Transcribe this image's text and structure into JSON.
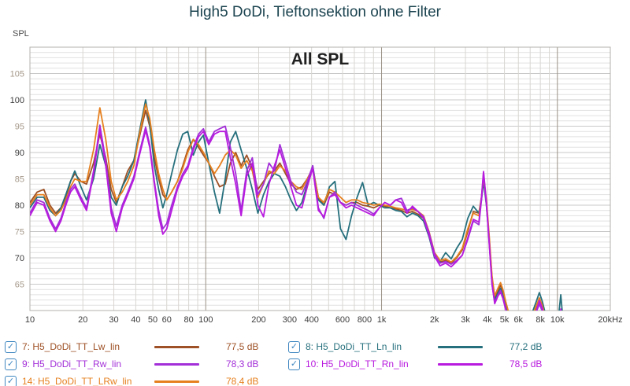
{
  "title": "High5 DoDi, Tieftonsektion ohne Filter",
  "axis_label": "SPL",
  "legend_ui": {
    "check_glyph": "✓",
    "checkbox_color": "#3E86C0"
  },
  "chart_data": {
    "type": "line",
    "x_scale": "log",
    "annotation": "All SPL",
    "xlim": [
      10,
      20000
    ],
    "ylim": [
      60,
      110
    ],
    "xlabel": "Hz",
    "ylabel": "SPL",
    "grid": {
      "minor_h": "#E1E1E1",
      "major_h": "#C9C9C9",
      "minor_v": "#D9D6D2",
      "major_v": "#9C9186",
      "border": "#B3B0AC",
      "tick_dark": "#3C3C3C",
      "tick_light": "#A5988A",
      "annotation_color": "#1F1F1F"
    },
    "y_ticks": [
      105,
      100,
      95,
      90,
      85,
      80,
      75,
      70,
      65
    ],
    "x_ticks": [
      {
        "f": 10,
        "label": "10"
      },
      {
        "f": 20,
        "label": "20"
      },
      {
        "f": 30,
        "label": "30"
      },
      {
        "f": 40,
        "label": "40"
      },
      {
        "f": 50,
        "label": "50"
      },
      {
        "f": 60,
        "label": "60"
      },
      {
        "f": 80,
        "label": "80"
      },
      {
        "f": 100,
        "label": "100"
      },
      {
        "f": 200,
        "label": "200"
      },
      {
        "f": 300,
        "label": "300"
      },
      {
        "f": 400,
        "label": "400"
      },
      {
        "f": 600,
        "label": "600"
      },
      {
        "f": 800,
        "label": "800"
      },
      {
        "f": 1000,
        "label": "1k"
      },
      {
        "f": 2000,
        "label": "2k"
      },
      {
        "f": 3000,
        "label": "3k"
      },
      {
        "f": 4000,
        "label": "4k"
      },
      {
        "f": 5000,
        "label": "5k"
      },
      {
        "f": 6000,
        "label": "6k"
      },
      {
        "f": 8000,
        "label": "8k"
      },
      {
        "f": 10000,
        "label": "10k"
      },
      {
        "f": 20000,
        "label": "20kHz"
      }
    ],
    "frequencies": [
      10,
      11,
      12,
      13,
      14,
      15,
      16,
      17,
      18,
      19.5,
      21,
      23,
      25,
      27,
      29,
      31,
      33.5,
      36,
      39,
      42,
      45.5,
      48,
      51,
      54,
      57,
      60,
      64,
      69,
      74,
      79,
      85,
      91,
      97,
      104,
      112,
      120,
      129,
      138,
      148,
      159,
      171,
      184,
      198,
      213,
      229,
      246,
      264,
      284,
      305,
      328,
      352,
      378,
      406,
      437,
      470,
      505,
      543,
      584,
      628,
      675,
      726,
      780,
      839,
      902,
      970,
      1043,
      1121,
      1205,
      1296,
      1393,
      1498,
      1611,
      1732,
      1862,
      2002,
      2152,
      2314,
      2488,
      2675,
      2876,
      3092,
      3325,
      3575,
      3700,
      3800,
      3950,
      4100,
      4250,
      4400,
      4600,
      4750,
      4900,
      5100,
      5350,
      6000,
      7000,
      7600,
      7900,
      8200,
      8600,
      9500,
      10200,
      10450,
      10700,
      11000
    ],
    "series": [
      {
        "id": "7",
        "label": "7: H5_DoDi_TT_Lw_lin",
        "color": "#9E5126",
        "avg_db": "77,5 dB",
        "checked": true,
        "values": [
          80.5,
          82.5,
          83,
          80,
          78.5,
          79.5,
          81.5,
          84.5,
          86,
          84.5,
          84,
          88,
          93.5,
          89,
          83,
          80.5,
          83.5,
          86.5,
          88.5,
          93,
          98,
          95,
          89,
          85,
          82,
          81,
          82.5,
          84.5,
          87.5,
          90.5,
          92.5,
          91,
          89.5,
          88,
          85.5,
          83.5,
          84,
          88,
          90,
          87.5,
          89.5,
          87,
          83,
          84.5,
          86,
          86.5,
          88,
          86,
          84,
          83,
          83.5,
          85,
          87,
          81.5,
          80,
          82.5,
          82,
          80.5,
          80,
          80.5,
          80.5,
          80,
          79.8,
          79.5,
          80,
          79.8,
          79.5,
          79.3,
          79,
          78.5,
          78.8,
          78.3,
          77.5,
          74.5,
          70.5,
          69.2,
          69.5,
          69,
          70,
          71.5,
          75,
          78.8,
          78.5,
          81.5,
          85,
          80.5,
          73.5,
          66,
          62.3,
          63.8,
          64.8,
          63.5,
          61,
          58.5,
          56,
          57.5,
          60.3,
          61.8,
          60.5,
          58,
          56,
          57,
          58.5,
          56.5,
          55
        ]
      },
      {
        "id": "8",
        "label": "8: H5_DoDi_TT_Ln_lin",
        "color": "#26707D",
        "avg_db": "77,2 dB",
        "checked": true,
        "values": [
          79.5,
          81.5,
          81.5,
          79,
          78,
          79.5,
          82,
          84.5,
          86.5,
          83.5,
          81,
          85,
          91.5,
          87.5,
          81.5,
          80,
          83.5,
          85.5,
          88.5,
          94,
          100,
          95.5,
          87.5,
          83,
          79.5,
          82,
          86,
          90.5,
          93.5,
          94,
          89.5,
          92,
          93.3,
          88,
          82.5,
          78.5,
          85,
          92,
          94,
          90.5,
          87,
          83,
          78.5,
          82,
          84.5,
          86,
          85.5,
          83.5,
          81,
          79,
          80.5,
          84,
          87.5,
          81,
          80,
          83.5,
          84.5,
          75.5,
          73.5,
          78,
          81.5,
          84.3,
          80,
          80.5,
          80,
          79.5,
          79.5,
          79,
          78.8,
          77.8,
          78.5,
          78,
          77,
          74,
          70,
          69.3,
          71,
          69.8,
          71.8,
          73.5,
          77.5,
          79.8,
          78.5,
          81,
          84.5,
          80,
          73,
          65.5,
          62,
          63.4,
          64.2,
          63,
          60.8,
          58.3,
          56,
          58.5,
          61.8,
          63.4,
          61.8,
          59,
          56.5,
          59.5,
          63,
          59,
          56
        ]
      },
      {
        "id": "14",
        "label": "14: H5_DoDi_TT_LRw_lin",
        "color": "#E6801F",
        "avg_db": "78,4 dB",
        "checked": true,
        "values": [
          80,
          82,
          82,
          79.5,
          78,
          79,
          81,
          83.5,
          85,
          84.5,
          84.5,
          90.5,
          98.5,
          92.5,
          84.5,
          81,
          82.5,
          84.5,
          87.5,
          93.5,
          99.2,
          96.5,
          90.5,
          86,
          83,
          81,
          82.5,
          84.5,
          87,
          90,
          92.5,
          91.5,
          90,
          88,
          86,
          87.5,
          89.5,
          90.5,
          89.5,
          87,
          88.5,
          86.5,
          81.5,
          84,
          86.5,
          86,
          87.5,
          86.5,
          84.5,
          83.5,
          83,
          85,
          87,
          81.5,
          80.5,
          83,
          82.5,
          81.5,
          80.5,
          81,
          81,
          80.5,
          80.3,
          80,
          80.2,
          80,
          79.8,
          79.5,
          79.3,
          79,
          79.2,
          78.8,
          78,
          75,
          71,
          69.5,
          69.8,
          69.2,
          70.2,
          71.8,
          75.5,
          78.5,
          78,
          81.5,
          85.3,
          81,
          74,
          66.5,
          62.8,
          64.3,
          65.3,
          64,
          61.5,
          59,
          56.5,
          58,
          61,
          62.4,
          61,
          58.5,
          56.3,
          57.2,
          58.8,
          56.8,
          55.2
        ]
      },
      {
        "id": "9",
        "label": "9: H5_DoDi_TT_Rw_lin",
        "color": "#A32FD8",
        "avg_db": "78,3 dB",
        "checked": true,
        "values": [
          78.5,
          81,
          80.5,
          77.5,
          75.5,
          77.5,
          80.5,
          83,
          84,
          81.5,
          79.5,
          86.5,
          95.2,
          88.5,
          79.5,
          76,
          80,
          82.5,
          85.5,
          90,
          94.8,
          91.5,
          84.5,
          79,
          75.5,
          76.5,
          80,
          83.5,
          86,
          87.5,
          91,
          93.5,
          94.5,
          92,
          94,
          94.5,
          95,
          91,
          86,
          79,
          86.5,
          89,
          82,
          84,
          88,
          86.5,
          91.5,
          88,
          84.5,
          82.5,
          82,
          84.5,
          87.5,
          79.5,
          77.5,
          81.5,
          82.5,
          80.5,
          80,
          80.5,
          80,
          79.5,
          79,
          78.3,
          79.5,
          80.5,
          80,
          81,
          81.3,
          79,
          79.5,
          78.8,
          77.8,
          74.8,
          70.8,
          69,
          69.3,
          68.8,
          69.5,
          70.5,
          73.5,
          77,
          76.3,
          81,
          86.2,
          80,
          72.5,
          65,
          61.5,
          63,
          63.8,
          62.5,
          60.2,
          57.8,
          55.5,
          57,
          59.8,
          61.2,
          60,
          57.5,
          55.5,
          56.5,
          58,
          56,
          55
        ]
      },
      {
        "id": "10",
        "label": "10: H5_DoDi_TT_Rn_lin",
        "color": "#B81ADE",
        "avg_db": "78,5 dB",
        "checked": true,
        "values": [
          78,
          80.5,
          80,
          77,
          75,
          77,
          80,
          82.5,
          83.5,
          81,
          79,
          86,
          94.5,
          87.5,
          78.5,
          75,
          79.5,
          82,
          85,
          89.5,
          94.2,
          91,
          84,
          78,
          74.5,
          75.5,
          79,
          83,
          85.5,
          87,
          90.5,
          93,
          94,
          91.5,
          93.5,
          94,
          94,
          89,
          84,
          78,
          85.5,
          88,
          80,
          77.8,
          84,
          87.5,
          90.5,
          87,
          83.5,
          80,
          79.5,
          83.5,
          87,
          79,
          77.8,
          81.5,
          82,
          80.5,
          79.5,
          80,
          79.5,
          79,
          78.5,
          78,
          79.5,
          80.5,
          80,
          81,
          80.5,
          78.5,
          79.8,
          78.8,
          77.5,
          74.3,
          70.3,
          68.5,
          69,
          68.3,
          69.3,
          70.5,
          73.8,
          77.3,
          76.8,
          81.5,
          86.4,
          80.5,
          72.8,
          65,
          61.3,
          62.8,
          63.5,
          62.3,
          60,
          57.5,
          55.3,
          57,
          60,
          61.9,
          60.5,
          57.8,
          55.8,
          57.5,
          60.3,
          57,
          55.3
        ]
      }
    ]
  }
}
